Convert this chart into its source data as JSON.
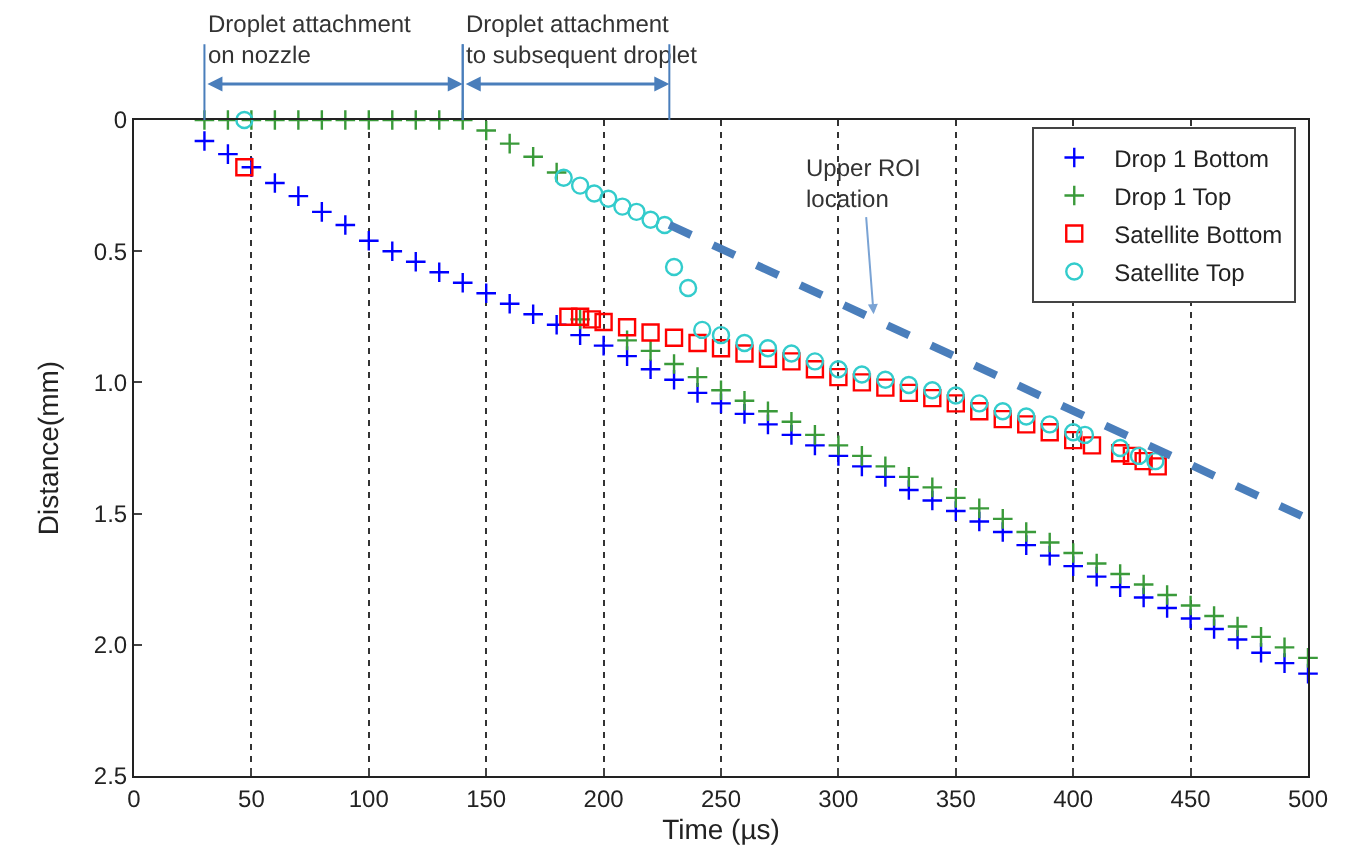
{
  "chart_data": {
    "type": "scatter",
    "xlabel": "Time (µs)",
    "ylabel": "Distance(mm)",
    "xlim": [
      0,
      500
    ],
    "xticks": [
      0,
      50,
      100,
      150,
      200,
      250,
      300,
      350,
      400,
      450,
      500
    ],
    "ylim": [
      2.5,
      0
    ],
    "yticks": [
      0,
      0.5,
      {
        "value": 1,
        "label": "1.0"
      },
      1.5,
      {
        "value": 2,
        "label": "2.0"
      },
      2.5
    ],
    "grid": "x",
    "legend": "top right",
    "series": [
      {
        "name": "Drop 1 Bottom",
        "color": "#0000ff",
        "marker": "cross",
        "x": [
          30,
          40,
          50,
          60,
          70,
          80,
          90,
          100,
          110,
          120,
          130,
          140,
          150,
          160,
          170,
          180,
          190,
          200,
          210,
          220,
          230,
          240,
          250,
          260,
          270,
          280,
          290,
          300,
          310,
          320,
          330,
          340,
          350,
          360,
          370,
          380,
          390,
          400,
          410,
          420,
          430,
          440,
          450,
          460,
          470,
          480,
          490,
          500
        ],
        "values": [
          0.08,
          0.13,
          0.18,
          0.24,
          0.29,
          0.35,
          0.4,
          0.46,
          0.5,
          0.54,
          0.58,
          0.62,
          0.66,
          0.7,
          0.74,
          0.78,
          0.82,
          0.86,
          0.9,
          0.95,
          0.99,
          1.04,
          1.08,
          1.12,
          1.16,
          1.2,
          1.24,
          1.28,
          1.32,
          1.36,
          1.41,
          1.45,
          1.49,
          1.53,
          1.57,
          1.62,
          1.66,
          1.7,
          1.74,
          1.78,
          1.82,
          1.86,
          1.9,
          1.94,
          1.98,
          2.03,
          2.07,
          2.11
        ]
      },
      {
        "name": "Drop 1 Top",
        "color": "#3a9a3a",
        "marker": "cross",
        "x": [
          30,
          40,
          50,
          60,
          70,
          80,
          90,
          100,
          110,
          120,
          130,
          140,
          150,
          160,
          170,
          180,
          190,
          200,
          210,
          220,
          230,
          240,
          250,
          260,
          270,
          280,
          290,
          300,
          310,
          320,
          330,
          340,
          350,
          360,
          370,
          380,
          390,
          400,
          410,
          420,
          430,
          440,
          450,
          460,
          470,
          480,
          490,
          500
        ],
        "values": [
          0,
          0,
          0,
          0,
          0,
          0,
          0,
          0,
          0,
          0,
          0,
          0,
          0.04,
          0.09,
          0.14,
          0.2,
          0.76,
          null,
          0.84,
          0.88,
          0.93,
          0.98,
          1.03,
          1.07,
          1.11,
          1.15,
          1.2,
          1.24,
          1.28,
          1.32,
          1.36,
          1.4,
          1.44,
          1.48,
          1.52,
          1.57,
          1.61,
          1.65,
          1.69,
          1.73,
          1.77,
          1.81,
          1.85,
          1.89,
          1.93,
          1.97,
          2.01,
          2.05
        ]
      },
      {
        "name": "Satellite Bottom",
        "color": "#ff0000",
        "marker": "square",
        "x": [
          47,
          185,
          190,
          195,
          200,
          210,
          220,
          230,
          240,
          250,
          260,
          270,
          280,
          290,
          300,
          310,
          320,
          330,
          340,
          350,
          360,
          370,
          380,
          390,
          400,
          408,
          420,
          425,
          430,
          436
        ],
        "values": [
          0.18,
          0.75,
          0.75,
          0.76,
          0.77,
          0.79,
          0.81,
          0.83,
          0.85,
          0.87,
          0.89,
          0.91,
          0.92,
          0.95,
          0.98,
          1.0,
          1.02,
          1.04,
          1.06,
          1.08,
          1.11,
          1.14,
          1.16,
          1.19,
          1.22,
          1.24,
          1.27,
          1.28,
          1.3,
          1.32
        ]
      },
      {
        "name": "Satellite Top",
        "color": "#33cccc",
        "marker": "circle",
        "x": [
          47,
          183,
          190,
          196,
          202,
          208,
          214,
          220,
          226,
          230,
          236,
          242,
          250,
          260,
          270,
          280,
          290,
          300,
          310,
          320,
          330,
          340,
          350,
          360,
          370,
          380,
          390,
          400,
          405,
          420,
          428,
          435
        ],
        "values": [
          0,
          0.22,
          0.25,
          0.28,
          0.3,
          0.33,
          0.35,
          0.38,
          0.4,
          0.56,
          0.64,
          0.8,
          0.82,
          0.85,
          0.87,
          0.89,
          0.92,
          0.95,
          0.97,
          0.99,
          1.01,
          1.03,
          1.05,
          1.08,
          1.11,
          1.13,
          1.16,
          1.19,
          1.2,
          1.25,
          1.28,
          1.3
        ]
      },
      {
        "type": "line",
        "color": "#4a7ebb",
        "line_style": "dashed",
        "x": [
          228,
          500
        ],
        "values": [
          0.4,
          1.52
        ]
      }
    ],
    "annotations": [
      {
        "text": "Upper ROI location",
        "x": 315,
        "y": 0.74
      },
      {
        "text": "Droplet attachment on nozzle",
        "x": 30,
        "y": 0
      },
      {
        "text": "Droplet attachment to subsequent droplet",
        "x": 140,
        "y": 0
      }
    ]
  }
}
